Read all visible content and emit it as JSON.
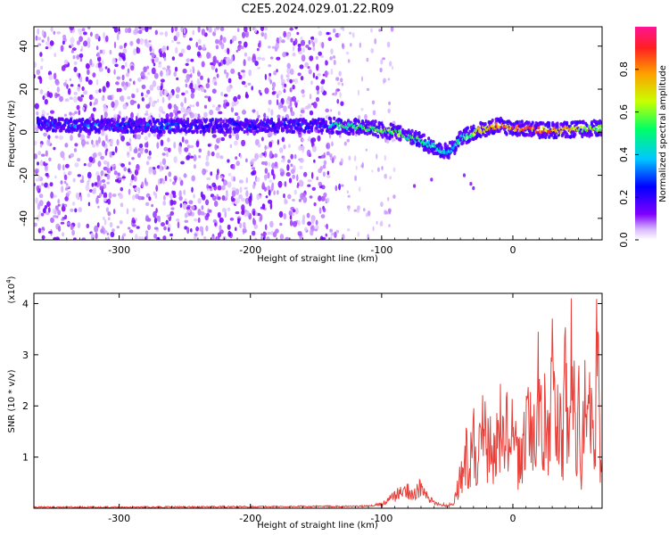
{
  "title": "C2E5.2024.029.01.22.R09",
  "colors": {
    "snr_line": "#e8403a",
    "spectrum_core": "#22cc66",
    "spectrum_edge": "#7a1fff",
    "spectrum_peak": "#e8192c"
  },
  "chart_data": [
    {
      "type": "heatmap",
      "xlabel": "Height of straight line (km)",
      "ylabel": "Frequency (Hz)",
      "xlim": [
        -365,
        68
      ],
      "ylim": [
        -50,
        49
      ],
      "xticks": [
        -300,
        -200,
        -100,
        0
      ],
      "xtick_labels": [
        "-300",
        "-200",
        "-100",
        "0"
      ],
      "yticks": [
        -40,
        -20,
        0,
        20,
        40
      ],
      "ytick_labels": [
        "-40",
        "-20",
        "0",
        "20",
        "40"
      ],
      "grid": false,
      "colorbar": {
        "label": "Normalized spectral amplitude",
        "range": [
          0,
          1
        ],
        "ticks": [
          0,
          0.2,
          0.4,
          0.6,
          0.8
        ],
        "tick_labels": [
          "0.0",
          "0.2",
          "0.4",
          "0.6",
          "0.8"
        ],
        "colors": [
          "#ffffff",
          "#8000ff",
          "#0000ff",
          "#00c8ff",
          "#00ff66",
          "#c8ff00",
          "#ffa000",
          "#ff2020",
          "#ff1493"
        ]
      },
      "ridge": {
        "x": [
          -360,
          -330,
          -300,
          -270,
          -240,
          -200,
          -150,
          -130,
          -110,
          -90,
          -80,
          -70,
          -60,
          -50,
          -45,
          -40,
          -30,
          -20,
          -10,
          0,
          20,
          40,
          68
        ],
        "y": [
          4,
          3,
          3,
          3,
          3,
          3,
          3,
          3,
          2,
          0,
          -2,
          -4,
          -7,
          -9,
          -7,
          -3,
          0,
          2,
          3,
          2,
          1,
          1,
          2
        ],
        "amplitude": [
          0.3,
          0.35,
          0.3,
          0.35,
          0.25,
          0.3,
          0.3,
          0.55,
          0.6,
          0.6,
          0.55,
          0.55,
          0.45,
          0.4,
          0.45,
          0.5,
          0.6,
          0.85,
          0.85,
          0.9,
          0.9,
          0.8,
          0.6
        ]
      }
    },
    {
      "type": "line",
      "xlabel": "Height of straight line (km)",
      "ylabel": "SNR (10 * v/v)",
      "y_multiplier_label": "(x10",
      "y_multiplier_exp": "4",
      "xlim": [
        -365,
        68
      ],
      "ylim": [
        0,
        4.2
      ],
      "xticks": [
        -300,
        -200,
        -100,
        0
      ],
      "xtick_labels": [
        "-300",
        "-200",
        "-100",
        "0"
      ],
      "yticks": [
        1,
        2,
        3,
        4
      ],
      "ytick_labels": [
        "1",
        "2",
        "3",
        "4"
      ],
      "grid": false,
      "series": [
        {
          "x": [
            -365,
            -300,
            -200,
            -110,
            -100,
            -95,
            -90,
            -85,
            -80,
            -75,
            -70,
            -65,
            -60,
            -55,
            -50,
            -45,
            -42,
            -40,
            -37,
            -35,
            -33,
            -30,
            -27,
            -25,
            -22,
            -20,
            -18,
            -15,
            -12,
            -10,
            -7,
            -5,
            -3,
            0,
            3,
            5,
            8,
            10,
            12,
            15,
            18,
            20,
            22,
            25,
            28,
            30,
            33,
            35,
            38,
            40,
            42,
            45,
            48,
            50,
            52,
            55,
            58,
            60,
            62,
            64,
            66,
            68
          ],
          "y": [
            0.02,
            0.02,
            0.03,
            0.04,
            0.08,
            0.15,
            0.25,
            0.3,
            0.35,
            0.28,
            0.4,
            0.2,
            0.1,
            0.08,
            0.05,
            0.1,
            0.4,
            0.6,
            0.9,
            1.2,
            0.8,
            1.5,
            1.0,
            1.3,
            1.7,
            1.1,
            1.4,
            1.0,
            1.5,
            1.9,
            1.2,
            1.7,
            1.3,
            1.6,
            1.1,
            0.9,
            1.4,
            1.9,
            2.3,
            1.3,
            2.0,
            2.6,
            1.5,
            2.4,
            1.3,
            2.8,
            1.4,
            2.2,
            1.0,
            2.9,
            1.5,
            3.2,
            1.2,
            2.4,
            0.4,
            3.3,
            1.8,
            2.6,
            0.5,
            4.05,
            1.6,
            0.6
          ]
        }
      ]
    }
  ]
}
